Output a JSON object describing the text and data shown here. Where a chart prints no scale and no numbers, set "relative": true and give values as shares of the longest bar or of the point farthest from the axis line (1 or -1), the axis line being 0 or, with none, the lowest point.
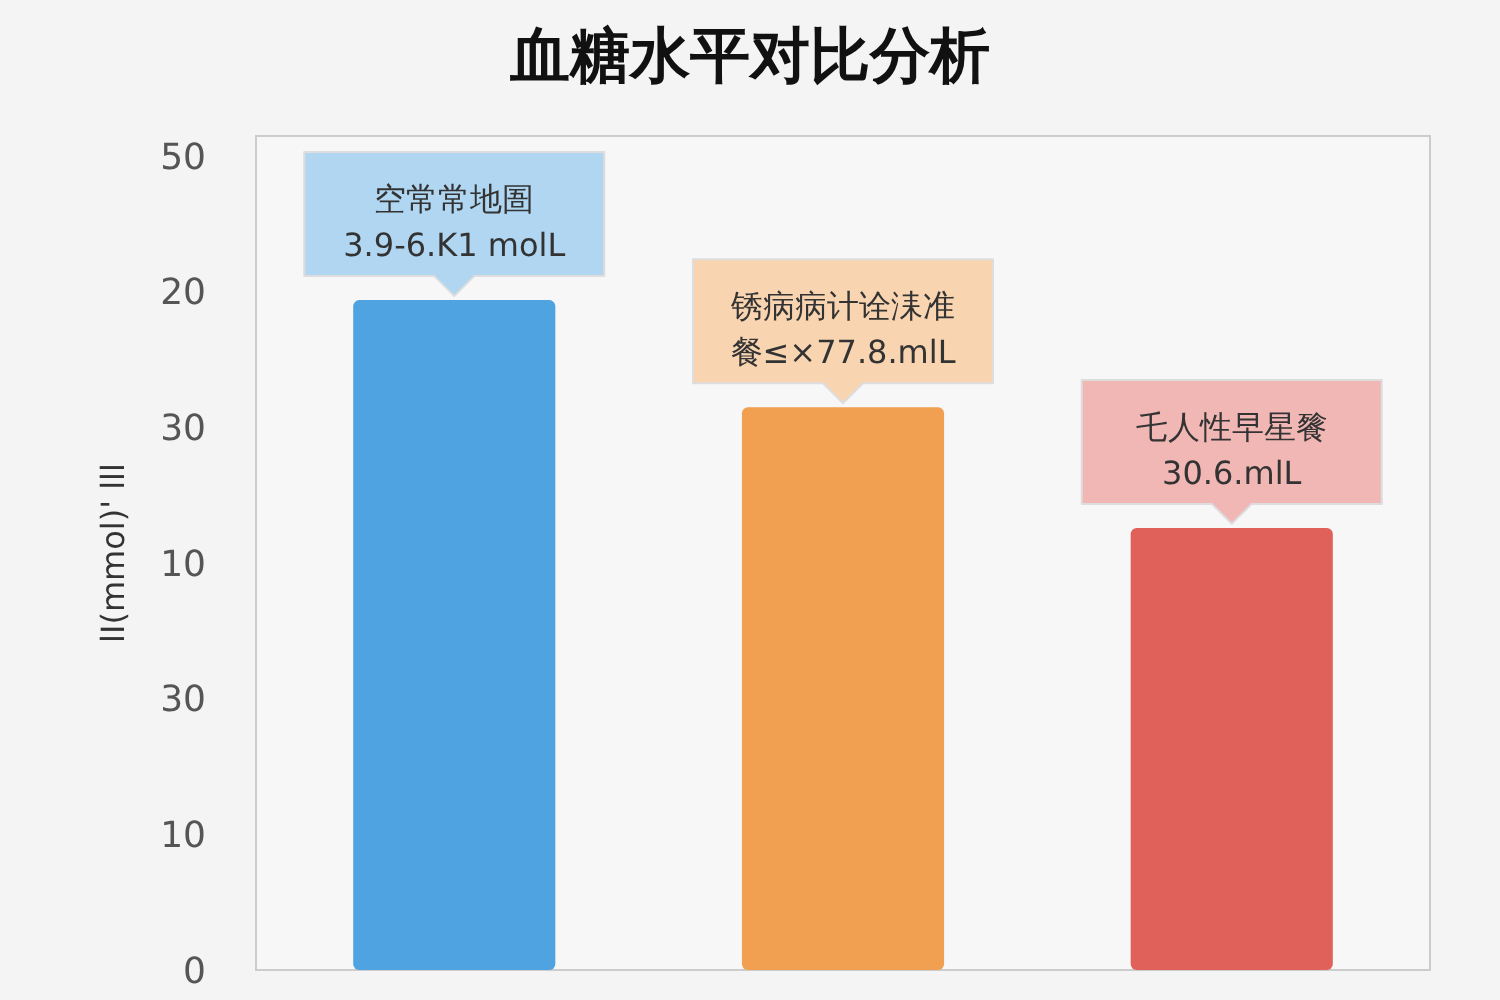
{
  "chart_data": {
    "type": "bar",
    "title": "血糖水平对比分析",
    "ylabel": "lI(mmol)' lll",
    "categories": [
      null,
      null,
      null
    ],
    "values": [
      1,
      0.84,
      0.66
    ],
    "colors": [
      "#4fa3e0",
      "#f0a050",
      "#e0605a"
    ],
    "relative": true,
    "annotations": [
      "空常常地圄",
      "3.9-6.K1 molL",
      "锈病病计诠洡准",
      "餐≤×77.8.mlL",
      "乇人性早星餮",
      "30.6.mlL",
      "0",
      "10",
      "30",
      "10",
      "30",
      "20",
      "50"
    ]
  }
}
